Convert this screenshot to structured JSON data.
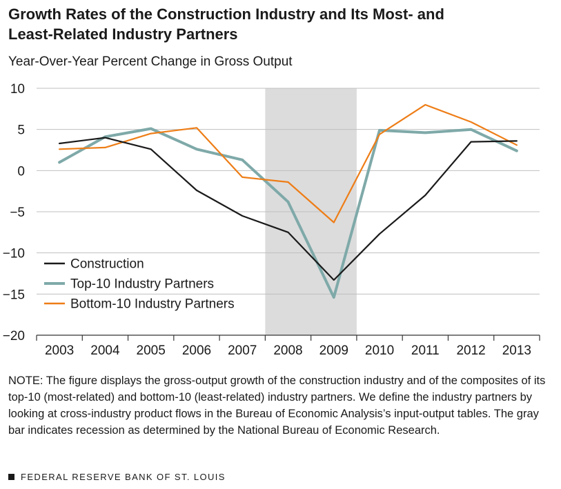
{
  "header": {
    "title_line1": "Growth Rates of the Construction Industry and Its Most- and",
    "title_line2": "Least-Related Industry Partners",
    "subtitle": "Year-Over-Year Percent Change in Gross Output"
  },
  "chart_data": {
    "type": "line",
    "title": "Growth Rates of the Construction Industry and Its Most- and Least-Related Industry Partners",
    "ylabel": "Year-Over-Year Percent Change in Gross Output",
    "xlabel": "",
    "categories": [
      "2003",
      "2004",
      "2005",
      "2006",
      "2007",
      "2008",
      "2009",
      "2010",
      "2011",
      "2012",
      "2013"
    ],
    "ylim": [
      -20,
      10
    ],
    "yticks": [
      10,
      5,
      0,
      -5,
      -10,
      -15,
      -20
    ],
    "ytick_labels": [
      "10",
      "5",
      "0",
      "−5",
      "−10",
      "−15",
      "−20"
    ],
    "grid": true,
    "legend_position": "lower-left",
    "recession": {
      "start": "2007.5",
      "end": "2009.5",
      "color": "#dcdcdc"
    },
    "series": [
      {
        "name": "Construction",
        "color": "#1a1a1a",
        "values": [
          3.3,
          4.0,
          2.6,
          -2.4,
          -5.5,
          -7.5,
          -13.3,
          -7.7,
          -3.0,
          3.5,
          3.6
        ]
      },
      {
        "name": "Top-10 Industry Partners",
        "color": "#7fa9a9",
        "values": [
          1.0,
          4.1,
          5.1,
          2.6,
          1.3,
          -3.8,
          -15.4,
          4.9,
          4.6,
          5.0,
          2.4
        ]
      },
      {
        "name": "Bottom-10 Industry Partners",
        "color": "#ee7d16",
        "values": [
          2.6,
          2.8,
          4.5,
          5.2,
          -0.8,
          -1.4,
          -6.3,
          4.4,
          8.0,
          5.9,
          3.1
        ]
      }
    ]
  },
  "note": "NOTE: The figure displays the gross-output growth of the construction industry and of the composites of its top-10 (most-related) and bottom-10 (least-related) industry partners. We define the industry partners by looking at cross-industry product flows in the Bureau of Economic Analysis’s input-output tables. The gray bar indicates recession as determined by the National Bureau of Economic Research.",
  "footer": "FEDERAL RESERVE BANK OF ST. LOUIS"
}
